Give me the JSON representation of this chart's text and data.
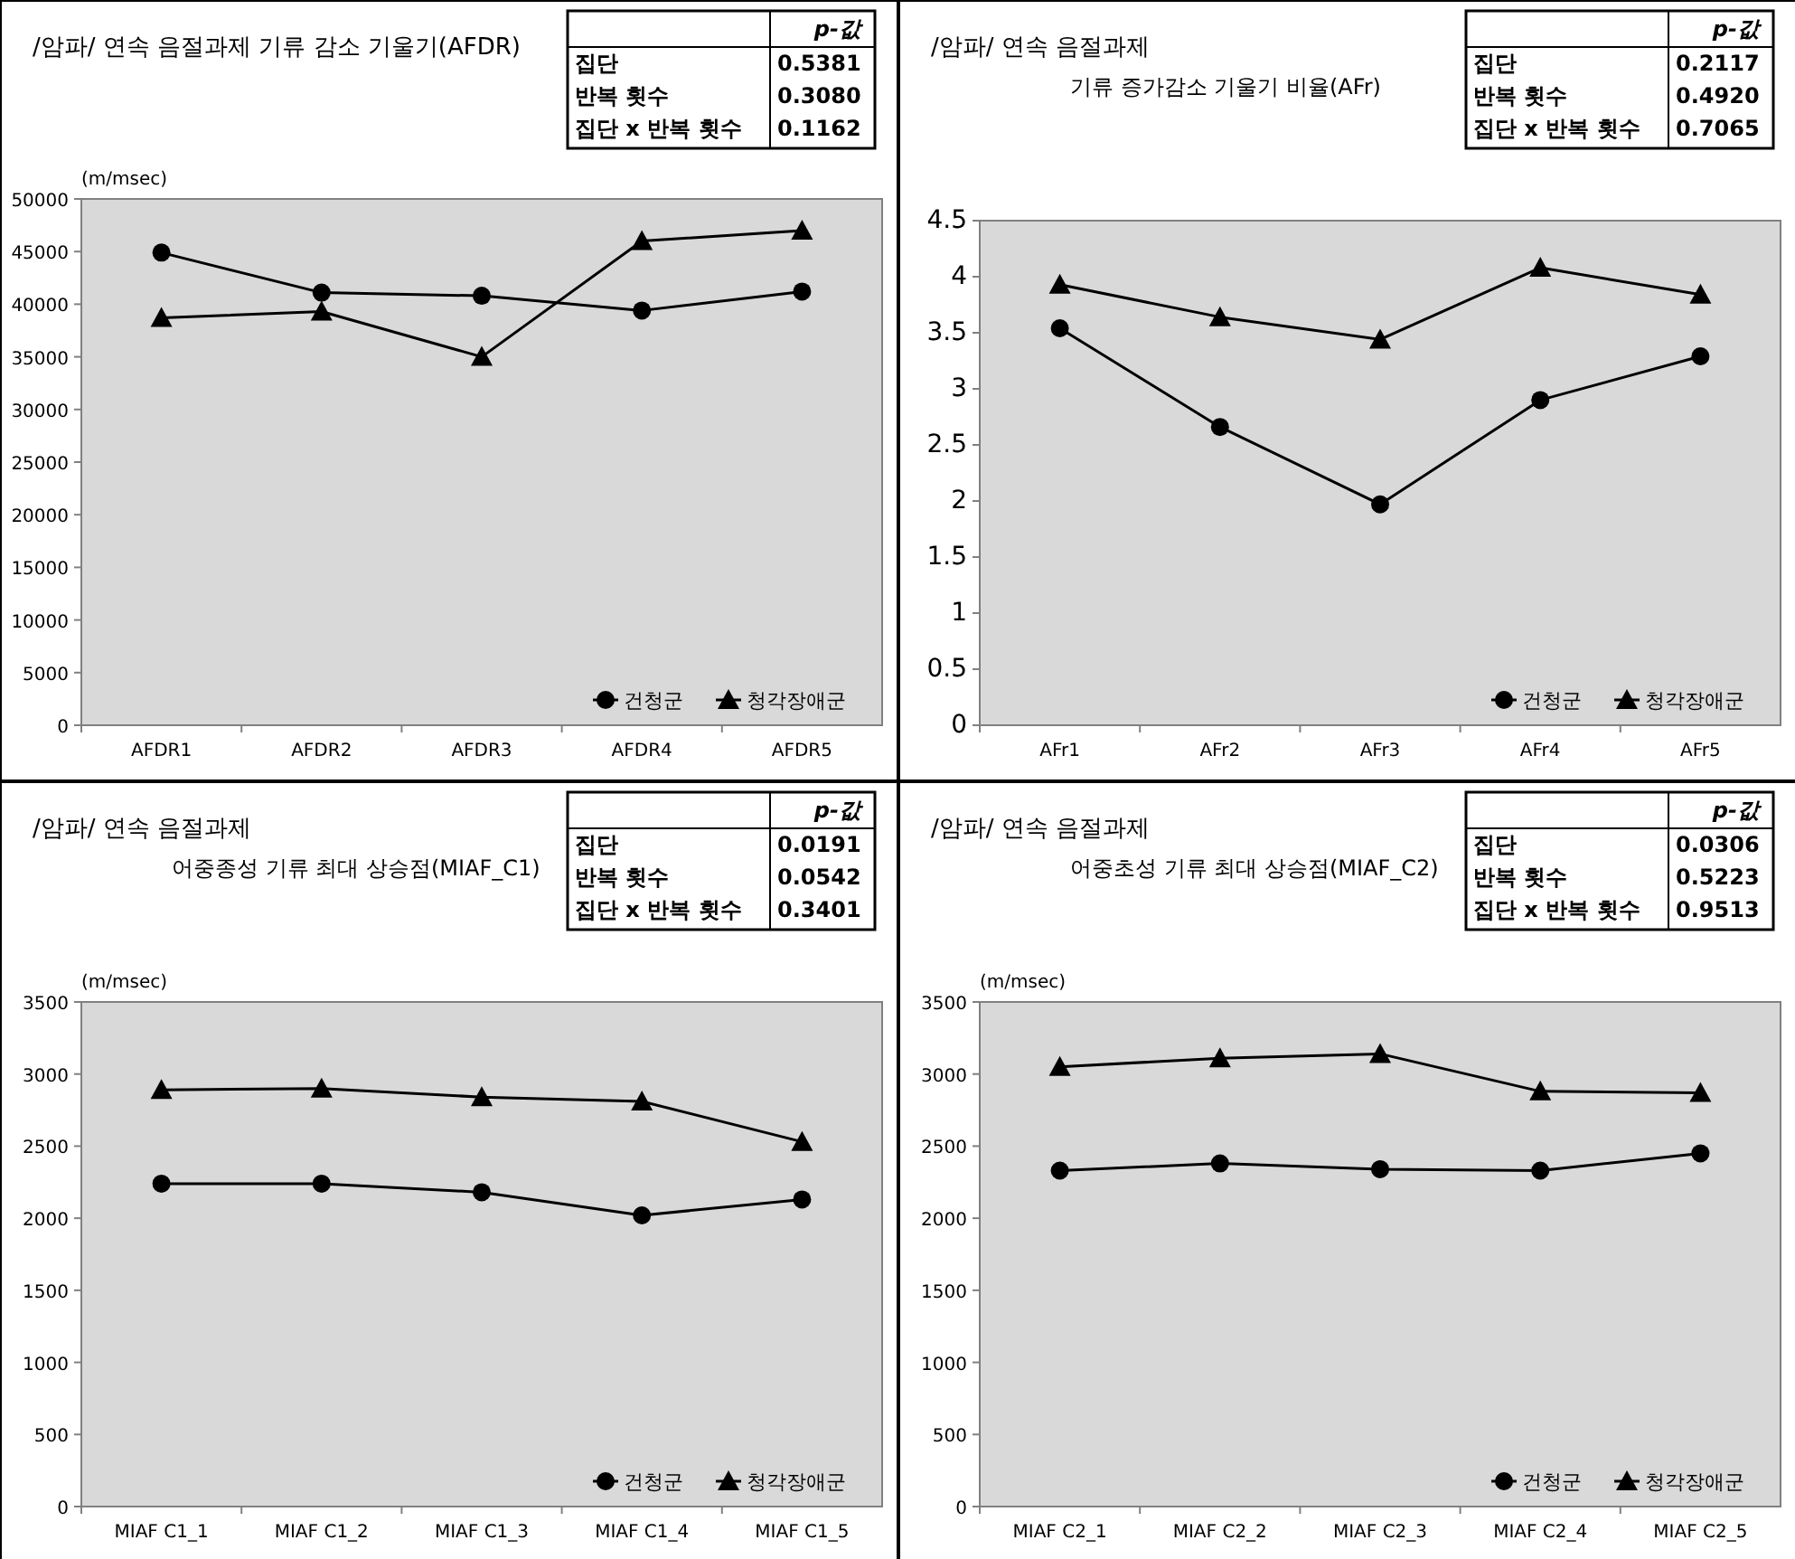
{
  "chart_data": [
    {
      "type": "line",
      "title": "/암파/ 연속 음절과제 기류 감소 기울기(AFDR)",
      "ylabel": "(m/msec)",
      "categories": [
        "AFDR1",
        "AFDR2",
        "AFDR3",
        "AFDR4",
        "AFDR5"
      ],
      "ylim": [
        0,
        50000
      ],
      "yticks": [
        0,
        5000,
        10000,
        15000,
        20000,
        25000,
        30000,
        35000,
        40000,
        45000,
        50000
      ],
      "legend": "bottom right",
      "grid": false,
      "annotations": [
        "p-값",
        "집단",
        "0.5381",
        "반복 횟수",
        "0.3080",
        "집단 x 반복 횟수",
        "0.1162"
      ],
      "series": [
        {
          "name": "건청군",
          "color": "#000000",
          "marker": "circle",
          "values": [
            44900,
            41100,
            40800,
            39400,
            41200
          ]
        },
        {
          "name": "청각장애군",
          "color": "#000000",
          "marker": "triangle",
          "values": [
            38700,
            39300,
            35000,
            46000,
            47000
          ]
        }
      ]
    },
    {
      "type": "line",
      "title": "/암파/ 연속 음절과제",
      "subtitle": "기류 증가감소 기울기 비율(AFr)",
      "categories": [
        "AFr1",
        "AFr2",
        "AFr3",
        "AFr4",
        "AFr5"
      ],
      "ylim": [
        0,
        4.5
      ],
      "yticks": [
        0,
        0.5,
        1,
        1.5,
        2,
        2.5,
        3,
        3.5,
        4,
        4.5
      ],
      "legend": "bottom right",
      "grid": false,
      "annotations": [
        "p-값",
        "집단",
        "0.2117",
        "반복 횟수",
        "0.4920",
        "집단 x 반복 횟수",
        "0.7065"
      ],
      "series": [
        {
          "name": "건청군",
          "color": "#000000",
          "marker": "circle",
          "values": [
            3.54,
            2.66,
            1.97,
            2.9,
            3.29
          ]
        },
        {
          "name": "청각장애군",
          "color": "#000000",
          "marker": "triangle",
          "values": [
            3.93,
            3.64,
            3.44,
            4.08,
            3.84
          ]
        }
      ]
    },
    {
      "type": "line",
      "title": "/암파/ 연속 음절과제",
      "subtitle": "어중종성 기류 최대 상승점(MIAF_C1)",
      "ylabel": "(m/msec)",
      "categories": [
        "MIAF C1_1",
        "MIAF C1_2",
        "MIAF C1_3",
        "MIAF C1_4",
        "MIAF C1_5"
      ],
      "ylim": [
        0,
        3500
      ],
      "yticks": [
        0,
        500,
        1000,
        1500,
        2000,
        2500,
        3000,
        3500
      ],
      "legend": "bottom right",
      "grid": false,
      "annotations": [
        "p-값",
        "집단",
        "0.0191",
        "반복 횟수",
        "0.0542",
        "집단 x 반복 횟수",
        "0.3401"
      ],
      "series": [
        {
          "name": "건청군",
          "color": "#000000",
          "marker": "circle",
          "values": [
            2240,
            2240,
            2180,
            2020,
            2130
          ]
        },
        {
          "name": "청각장애군",
          "color": "#000000",
          "marker": "triangle",
          "values": [
            2890,
            2900,
            2840,
            2810,
            2530
          ]
        }
      ]
    },
    {
      "type": "line",
      "title": "/암파/ 연속 음절과제",
      "subtitle": "어중초성 기류 최대 상승점(MIAF_C2)",
      "ylabel": "(m/msec)",
      "categories": [
        "MIAF C2_1",
        "MIAF C2_2",
        "MIAF C2_3",
        "MIAF C2_4",
        "MIAF C2_5"
      ],
      "ylim": [
        0,
        3500
      ],
      "yticks": [
        0,
        500,
        1000,
        1500,
        2000,
        2500,
        3000,
        3500
      ],
      "legend": "bottom right",
      "grid": false,
      "annotations": [
        "p-값",
        "집단",
        "0.0306",
        "반복 횟수",
        "0.5223",
        "집단 x 반복 횟수",
        "0.9513"
      ],
      "series": [
        {
          "name": "건청군",
          "color": "#000000",
          "marker": "circle",
          "values": [
            2330,
            2380,
            2340,
            2330,
            2450
          ]
        },
        {
          "name": "청각장애군",
          "color": "#000000",
          "marker": "triangle",
          "values": [
            3050,
            3110,
            3140,
            2880,
            2870
          ]
        }
      ]
    }
  ]
}
